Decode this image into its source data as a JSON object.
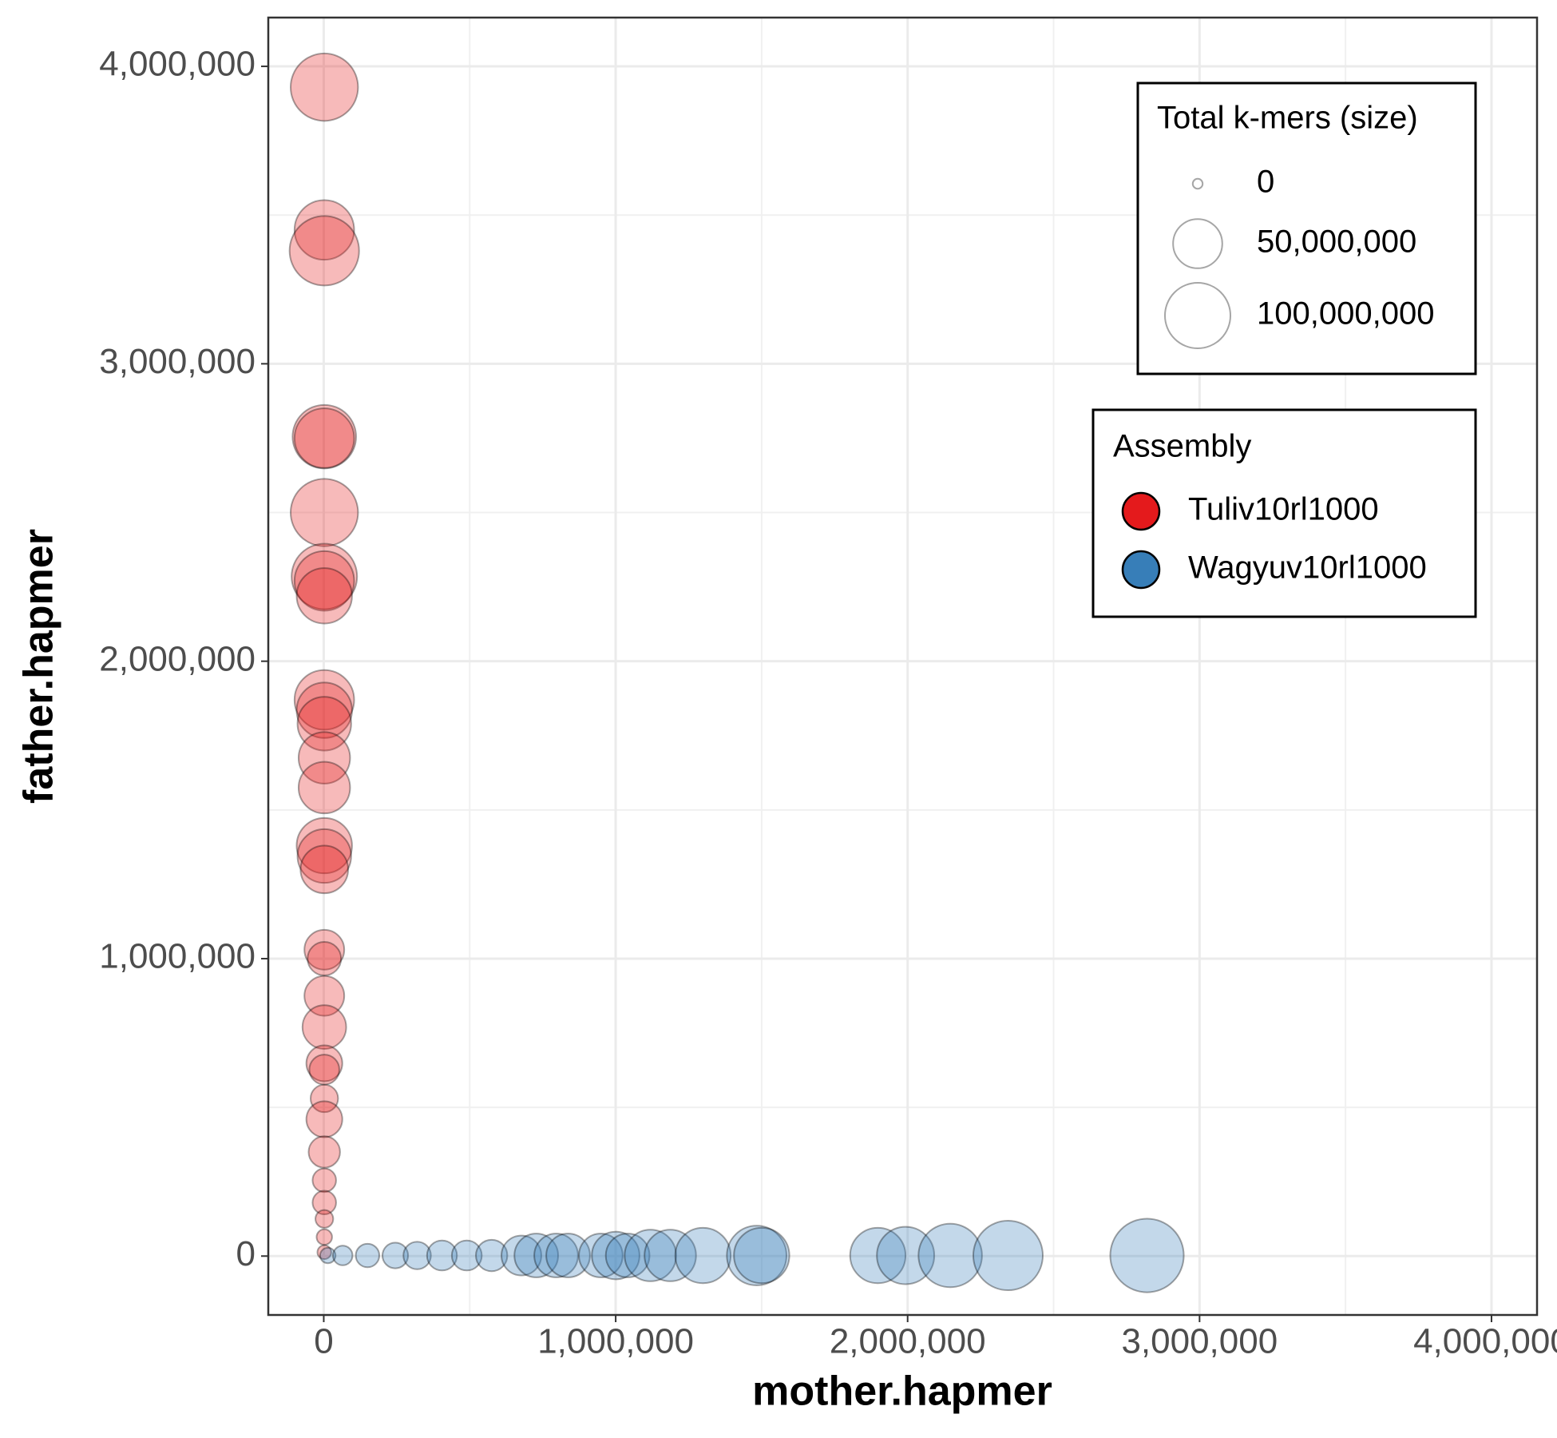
{
  "chart_data": {
    "type": "scatter",
    "x_label": "mother.hapmer",
    "y_label": "father.hapmer",
    "xlim": [
      -190000,
      4156000
    ],
    "ylim": [
      -198000,
      4164000
    ],
    "xticks": [
      {
        "value": 0,
        "label": "0"
      },
      {
        "value": 1000000,
        "label": "1,000,000"
      },
      {
        "value": 2000000,
        "label": "2,000,000"
      },
      {
        "value": 3000000,
        "label": "3,000,000"
      },
      {
        "value": 4000000,
        "label": "4,000,000"
      }
    ],
    "yticks": [
      {
        "value": 0,
        "label": "0"
      },
      {
        "value": 1000000,
        "label": "1,000,000"
      },
      {
        "value": 2000000,
        "label": "2,000,000"
      },
      {
        "value": 3000000,
        "label": "3,000,000"
      },
      {
        "value": 4000000,
        "label": "4,000,000"
      }
    ],
    "grid": true,
    "size_legend_title": "Total k-mers (size)",
    "size_legend": [
      {
        "value": 0,
        "label": "0"
      },
      {
        "value": 50000000,
        "label": "50,000,000"
      },
      {
        "value": 100000000,
        "label": "100,000,000"
      }
    ],
    "color_legend_title": "Assembly",
    "series": [
      {
        "name": "Tuliv10rl1000",
        "color": "#e41a1c",
        "x": [
          2000,
          2000,
          2000,
          2000,
          2000,
          2000,
          2000,
          2000,
          2000,
          2000,
          2000,
          2000,
          2000,
          2000,
          2000,
          2000,
          2000,
          2000,
          2000,
          2000,
          2000,
          2000,
          2000,
          2000,
          2000,
          2000,
          2000,
          2000,
          2000,
          2000,
          2000
        ],
        "values": [
          3930000,
          3450000,
          3380000,
          2755000,
          2750000,
          2500000,
          2285000,
          2270000,
          2220000,
          1870000,
          1835000,
          1790000,
          1675000,
          1575000,
          1380000,
          1345000,
          1300000,
          1030000,
          1000000,
          875000,
          770000,
          648000,
          627000,
          530000,
          460000,
          350000,
          255000,
          180000,
          125000,
          64000,
          13000
        ],
        "sizes": [
          107000000,
          80000000,
          115000000,
          93000000,
          80000000,
          107000000,
          100000000,
          80000000,
          67000000,
          80000000,
          67000000,
          62000000,
          56000000,
          56000000,
          67000000,
          62000000,
          46000000,
          29000000,
          18000000,
          29000000,
          37000000,
          22000000,
          13000000,
          10000000,
          22000000,
          15000000,
          6000000,
          6000000,
          2000000,
          1000000,
          500000
        ]
      },
      {
        "name": "Wagyuv10rl1000",
        "color": "#377eb8",
        "x": [
          14000,
          65000,
          150000,
          245000,
          320000,
          405000,
          490000,
          575000,
          677000,
          728000,
          796000,
          837000,
          949000,
          1000000,
          1041000,
          1119000,
          1187000,
          1299000,
          1483000,
          1500000,
          1898000,
          1993000,
          2146000,
          2344000,
          2820000
        ],
        "values": [
          2000,
          2000,
          2000,
          2000,
          2000,
          2000,
          2000,
          2000,
          2000,
          2000,
          2000,
          2000,
          2000,
          2000,
          2000,
          2000,
          2000,
          2000,
          2000,
          2000,
          2000,
          2000,
          2000,
          2000,
          2000
        ],
        "sizes": [
          1000000,
          3000000,
          6000000,
          8000000,
          10000000,
          13000000,
          13000000,
          15000000,
          29000000,
          37000000,
          37000000,
          37000000,
          37000000,
          46000000,
          37000000,
          56000000,
          56000000,
          67000000,
          80000000,
          67000000,
          67000000,
          73000000,
          93000000,
          115000000,
          131000000
        ]
      }
    ]
  }
}
